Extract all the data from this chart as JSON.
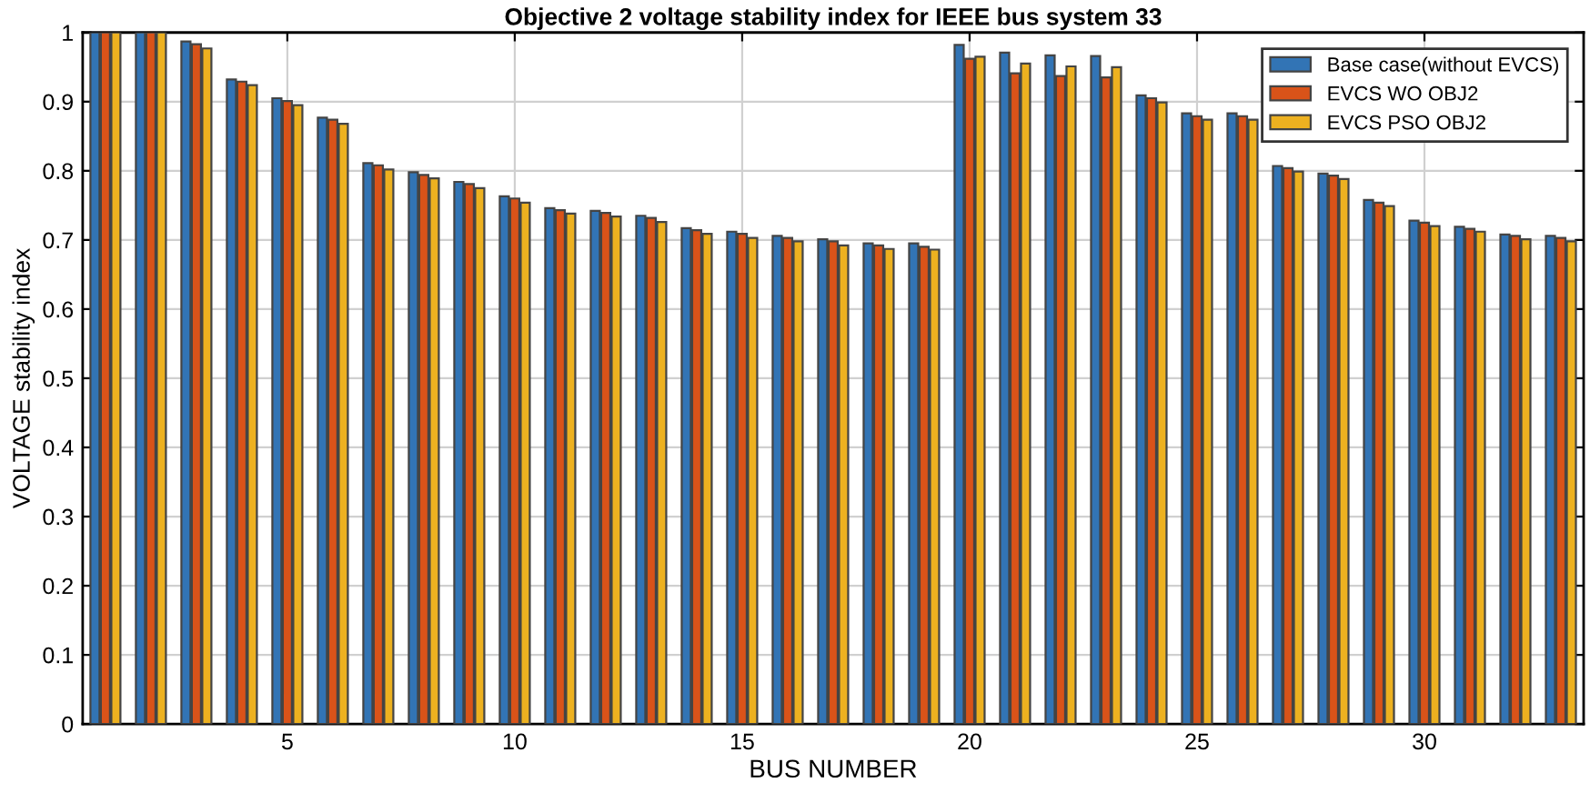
{
  "chart_data": {
    "type": "bar",
    "title": "Objective 2 voltage stability index for IEEE bus system 33",
    "xlabel": "BUS NUMBER",
    "ylabel": "VOLTAGE stability index",
    "x": [
      1,
      2,
      3,
      4,
      5,
      6,
      7,
      8,
      9,
      10,
      11,
      12,
      13,
      14,
      15,
      16,
      17,
      18,
      19,
      20,
      21,
      22,
      23,
      24,
      25,
      26,
      27,
      28,
      29,
      30,
      31,
      32,
      33
    ],
    "series": [
      {
        "name": "Base case(without EVCS)",
        "color": "#3274b5",
        "values": [
          1,
          1,
          0.987,
          0.932,
          0.905,
          0.877,
          0.811,
          0.798,
          0.784,
          0.763,
          0.746,
          0.742,
          0.735,
          0.717,
          0.712,
          0.706,
          0.701,
          0.695,
          0.695,
          0.982,
          0.971,
          0.967,
          0.966,
          0.909,
          0.883,
          0.883,
          0.807,
          0.796,
          0.758,
          0.728,
          0.719,
          0.708,
          0.706
        ]
      },
      {
        "name": "EVCS WO OBJ2",
        "color": "#d95319",
        "values": [
          1,
          1,
          0.983,
          0.929,
          0.901,
          0.874,
          0.808,
          0.794,
          0.781,
          0.76,
          0.743,
          0.739,
          0.732,
          0.714,
          0.709,
          0.703,
          0.698,
          0.692,
          0.69,
          0.962,
          0.941,
          0.937,
          0.935,
          0.905,
          0.879,
          0.879,
          0.804,
          0.793,
          0.754,
          0.725,
          0.716,
          0.706,
          0.703
        ]
      },
      {
        "name": "EVCS PSO OBJ2",
        "color": "#edb120",
        "values": [
          1,
          1,
          0.977,
          0.924,
          0.895,
          0.868,
          0.802,
          0.789,
          0.775,
          0.754,
          0.738,
          0.734,
          0.726,
          0.709,
          0.703,
          0.698,
          0.692,
          0.687,
          0.686,
          0.965,
          0.955,
          0.951,
          0.95,
          0.899,
          0.874,
          0.874,
          0.799,
          0.788,
          0.749,
          0.72,
          0.712,
          0.701,
          0.698
        ]
      }
    ],
    "xlim": [
      0.5,
      33.5
    ],
    "xticks": [
      5,
      10,
      15,
      20,
      25,
      30
    ],
    "ylim": [
      0,
      1
    ],
    "yticks": [
      0,
      0.1,
      0.2,
      0.3,
      0.4,
      0.5,
      0.6,
      0.7,
      0.8,
      0.9,
      1
    ],
    "grid": true,
    "legend": "top right"
  }
}
